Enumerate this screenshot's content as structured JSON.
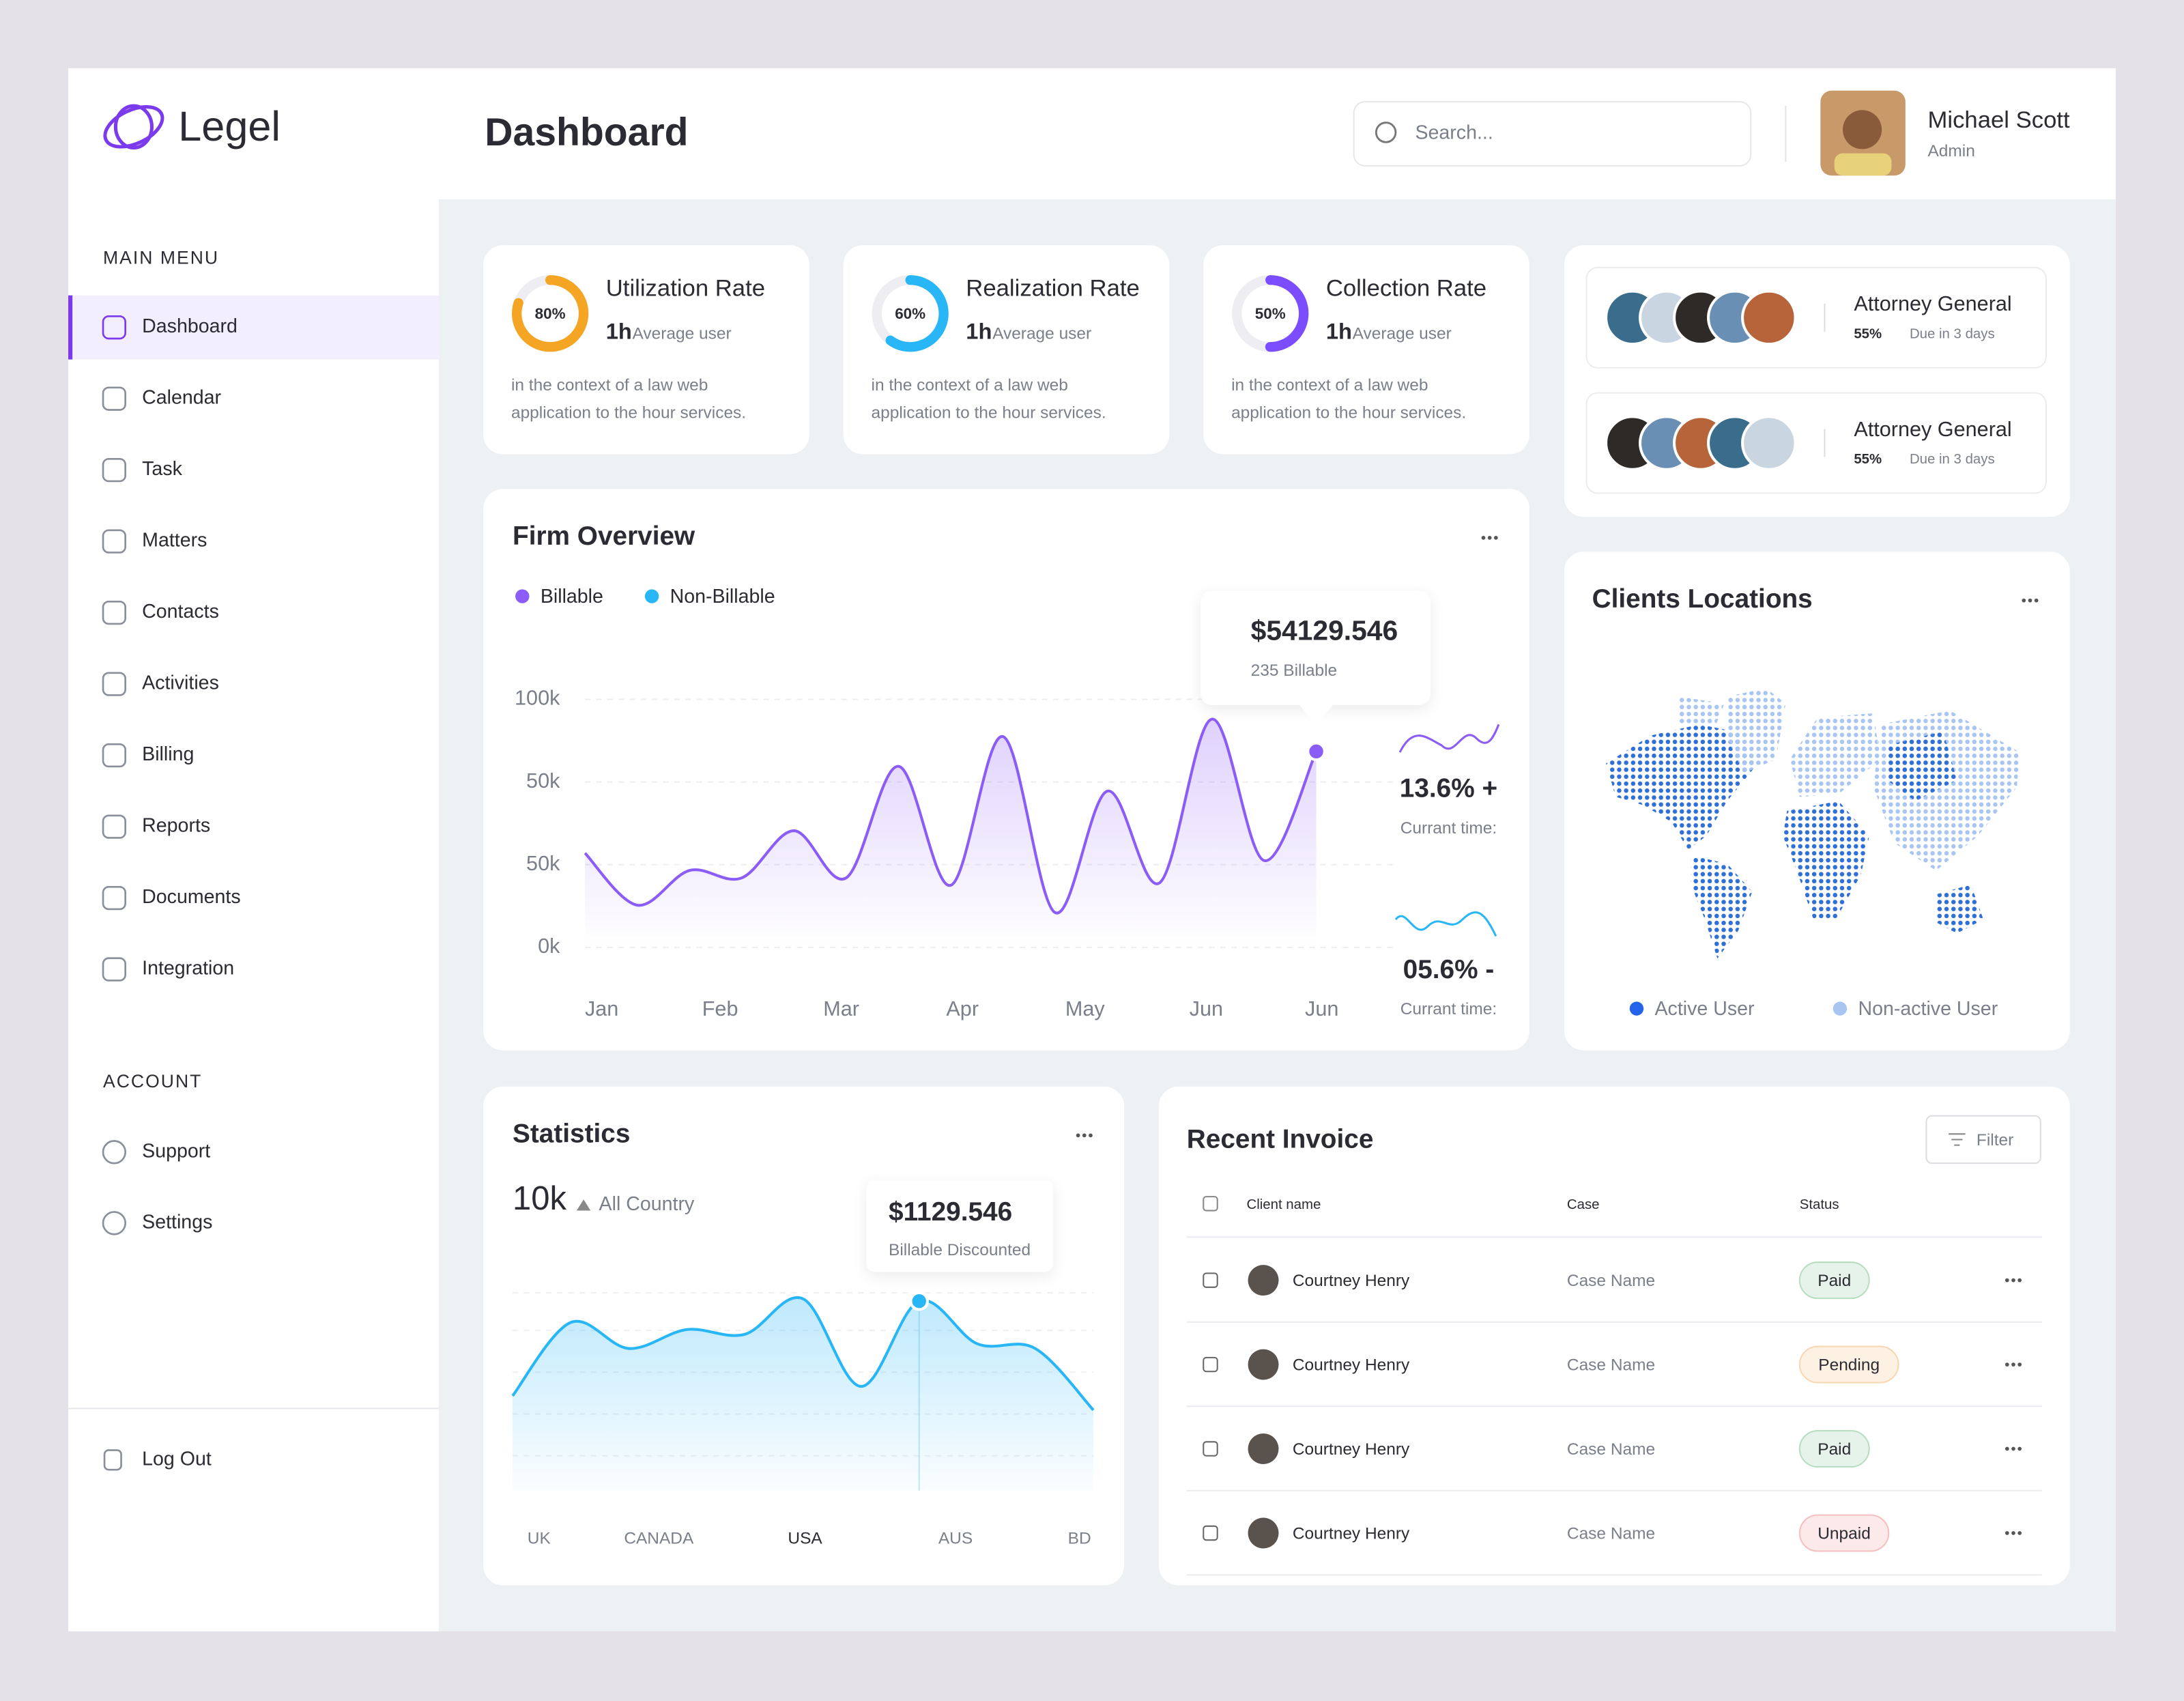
{
  "brand": "Legel",
  "sidebar": {
    "main_menu_title": "MAIN MENU",
    "main_menu": [
      "Dashboard",
      "Calendar",
      "Task",
      "Matters",
      "Contacts",
      "Activities",
      "Billing",
      "Reports",
      "Documents",
      "Integration"
    ],
    "account_title": "ACCOUNT",
    "account": [
      "Support",
      "Settings"
    ],
    "logout": "Log Out"
  },
  "header": {
    "title": "Dashboard",
    "search_placeholder": "Search...",
    "user_name": "Michael Scott",
    "user_role": "Admin"
  },
  "rate_cards": [
    {
      "title": "Utilization Rate",
      "value": 80,
      "value_label": "80%",
      "color": "#f5a524",
      "hours": "1h",
      "hours_note": "Average user",
      "description_lines": [
        "in the context of a law web",
        "application to the hour services."
      ]
    },
    {
      "title": "Realization Rate",
      "value": 60,
      "value_label": "60%",
      "color": "#29b6f6",
      "hours": "1h",
      "hours_note": "Average user",
      "description_lines": [
        "in the context of a law web",
        "application to the hour services."
      ]
    },
    {
      "title": "Collection Rate",
      "value": 50,
      "value_label": "50%",
      "color": "#7c4dff",
      "hours": "1h",
      "hours_note": "Average user",
      "description_lines": [
        "in the context of a law web",
        "application to the hour services."
      ]
    }
  ],
  "attorney_cards": [
    {
      "title": "Attorney General",
      "percent": "55%",
      "due": "Due in 3 days"
    },
    {
      "title": "Attorney General",
      "percent": "55%",
      "due": "Due in 3 days"
    }
  ],
  "firm_overview": {
    "type": "line",
    "title": "Firm Overview",
    "legend": [
      {
        "name": "Billable",
        "color": "#8b5cf6"
      },
      {
        "name": "Non-Billable",
        "color": "#29b6f6"
      }
    ],
    "y_labels": [
      "100k",
      "50k",
      "50k",
      "0k"
    ],
    "x_labels": [
      "Jan",
      "Feb",
      "Mar",
      "Apr",
      "May",
      "Jun",
      "Jun"
    ],
    "values": [
      38,
      17,
      31,
      28,
      47,
      28,
      73,
      25,
      85,
      14,
      63,
      26,
      92,
      35,
      79
    ],
    "ylim": [
      0,
      100
    ],
    "tooltip": {
      "value": "$54129.546",
      "note": "235 Billable"
    },
    "trends": [
      {
        "value": "13.6% +",
        "note": "Currant time:"
      },
      {
        "value": "05.6% -",
        "note": "Currant time:"
      }
    ]
  },
  "clients_locations": {
    "title": "Clients Locations",
    "legend": [
      {
        "name": "Active User",
        "color": "#2563eb"
      },
      {
        "name": "Non-active User",
        "color": "#a9c6f2"
      }
    ]
  },
  "statistics": {
    "type": "area",
    "title": "Statistics",
    "total": "10k",
    "filter": "All Country",
    "categories": [
      "UK",
      "CANADA",
      "USA",
      "AUS",
      "BD"
    ],
    "values": [
      40,
      71,
      60,
      68,
      66,
      81,
      44,
      80,
      62,
      60,
      34
    ],
    "ylim": [
      0,
      100
    ],
    "color": "#29b6f6",
    "tooltip": {
      "value": "$1129.546",
      "note": "Billable Discounted"
    }
  },
  "invoice": {
    "title": "Recent Invoice",
    "filter": "Filter",
    "columns": [
      "Client name",
      "Case",
      "Status"
    ],
    "rows": [
      {
        "client": "Courtney Henry",
        "case": "Case Name",
        "status": "Paid",
        "status_color": "#2e9e4f"
      },
      {
        "client": "Courtney Henry",
        "case": "Case Name",
        "status": "Pending",
        "status_color": "#f08a1c"
      },
      {
        "client": "Courtney Henry",
        "case": "Case Name",
        "status": "Paid",
        "status_color": "#2e9e4f"
      },
      {
        "client": "Courtney Henry",
        "case": "Case Name",
        "status": "Unpaid",
        "status_color": "#e5484d"
      }
    ]
  }
}
